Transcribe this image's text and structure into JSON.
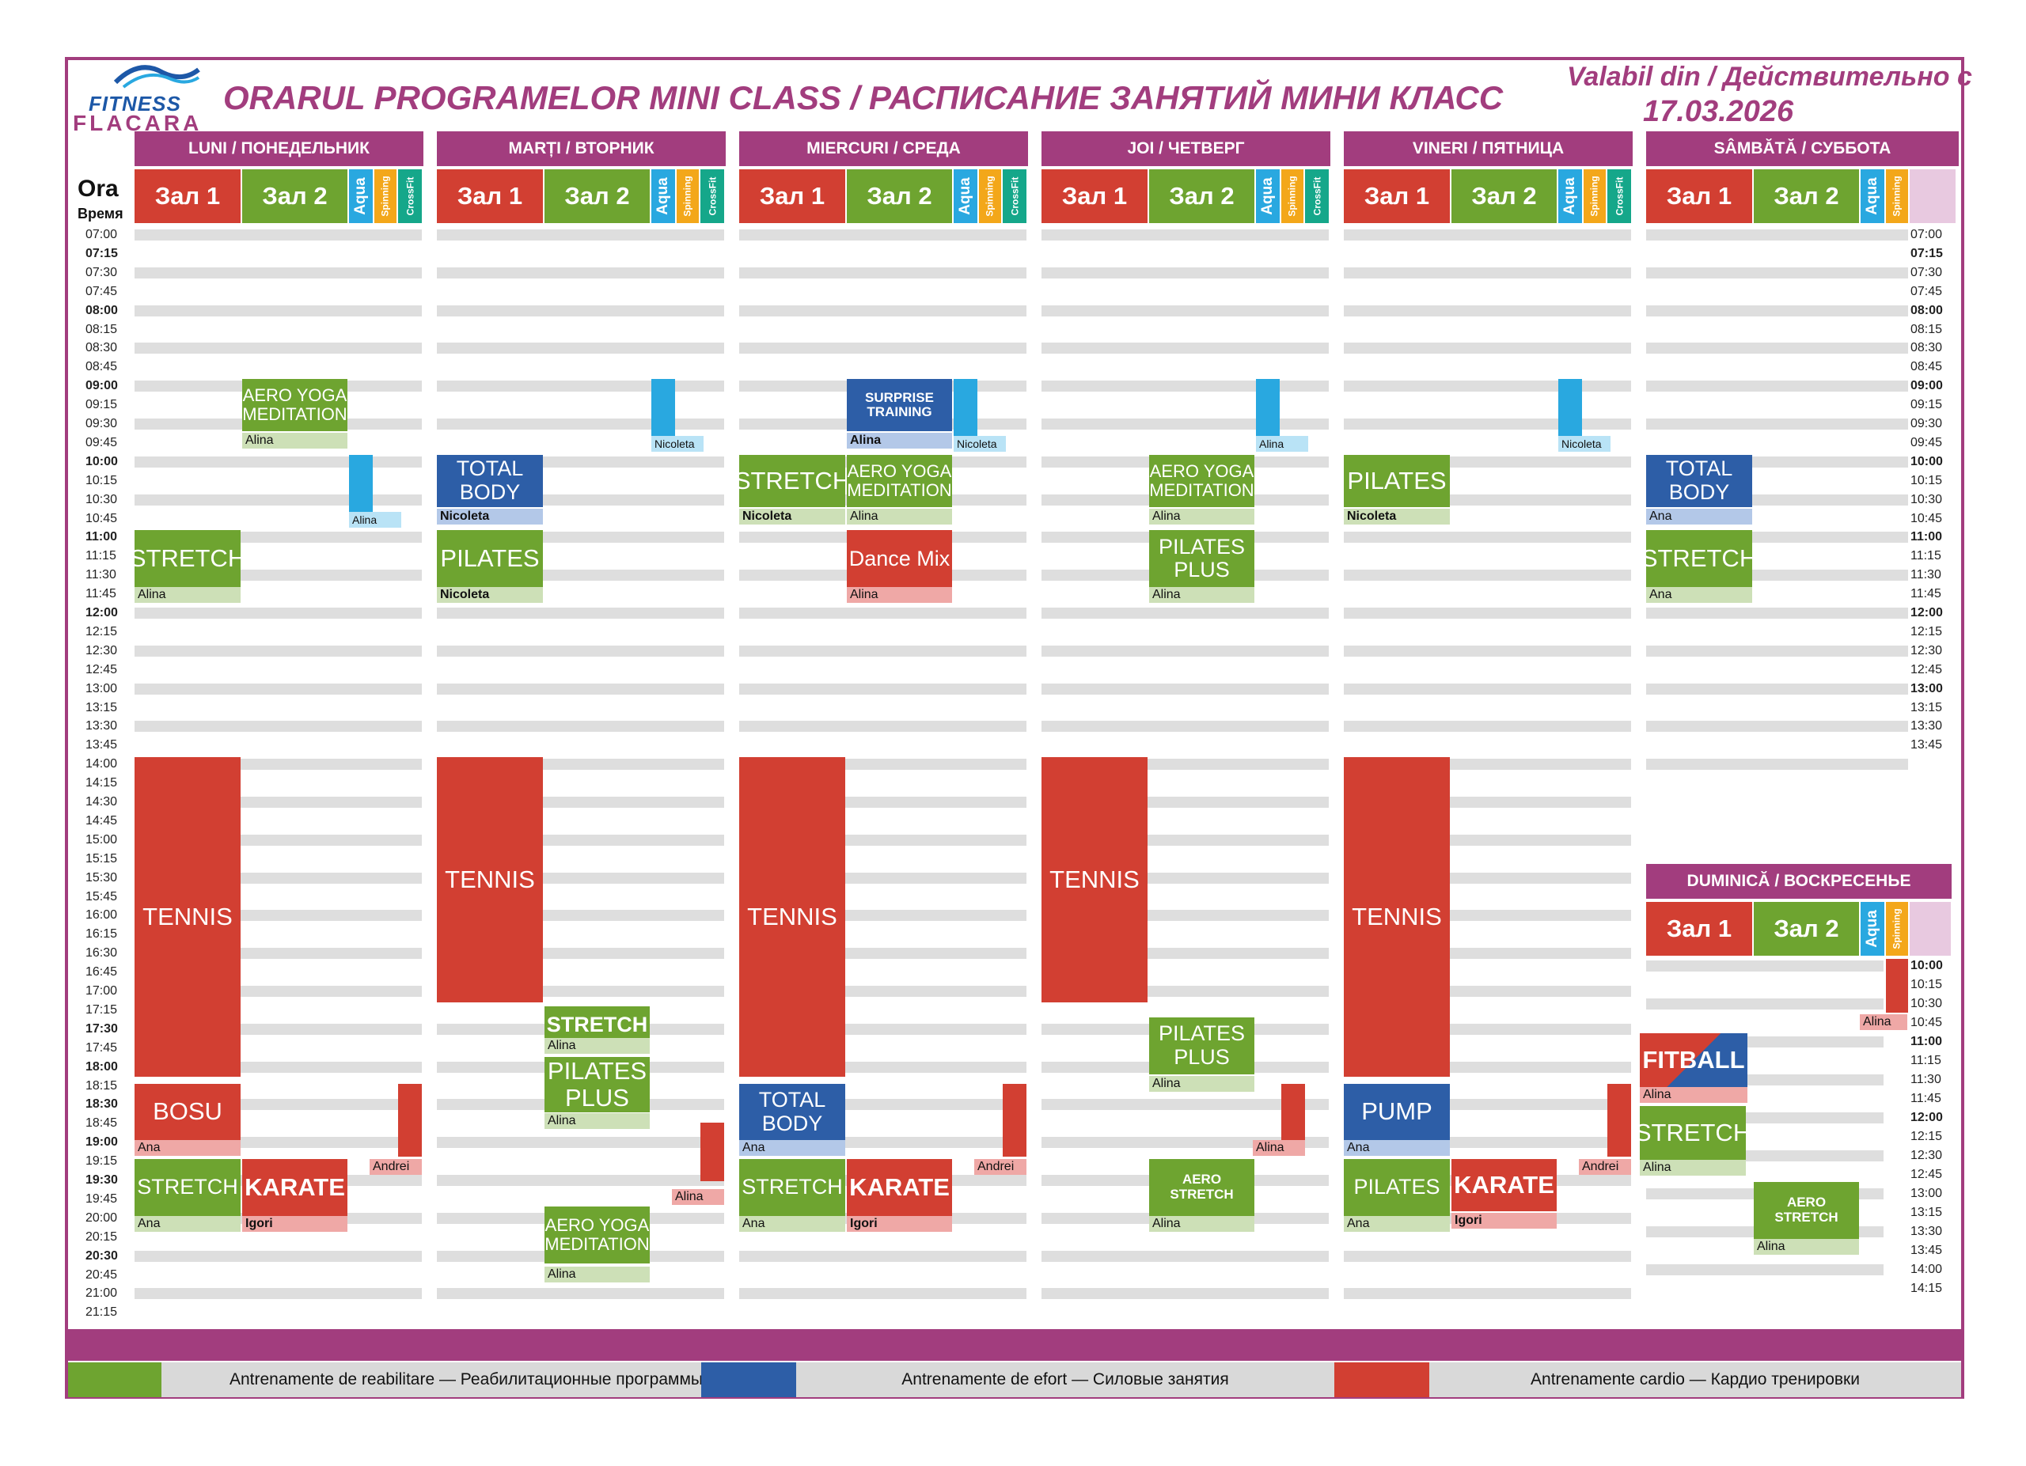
{
  "logo": {
    "fitness": "FITNESS",
    "flacara": "FLACARA"
  },
  "header": {
    "title": "ORARUL PROGRAMELOR MINI CLASS  /  РАСПИСАНИЕ ЗАНЯТИЙ МИНИ КЛАСС",
    "valid_label": "Valabil din / Действительно с",
    "valid_date": "17.03.2026"
  },
  "ora": {
    "label": "Ora",
    "sub": "Время"
  },
  "days": {
    "mon": "LUNI / ПОНЕДЕЛЬНИК",
    "tue": "MARȚI / ВТОРНИК",
    "wed": "MIERCURI / СРЕДА",
    "thu": "JOI / ЧЕТВЕРГ",
    "fri": "VINERI / ПЯТНИЦА",
    "sat": "SÂMBĂTĂ / СУББОТА",
    "sun": "DUMINICĂ / ВОСКРЕСЕНЬЕ"
  },
  "halls": {
    "zal1": "Зал 1",
    "zal2": "Зал 2",
    "aqua": "Aqua",
    "spinning": "Spinning",
    "crossfit": "CrossFit"
  },
  "times_left": [
    "07:00",
    "07:15",
    "07:30",
    "07:45",
    "08:00",
    "08:15",
    "08:30",
    "08:45",
    "09:00",
    "09:15",
    "09:30",
    "09:45",
    "10:00",
    "10:15",
    "10:30",
    "10:45",
    "11:00",
    "11:15",
    "11:30",
    "11:45",
    "12:00",
    "12:15",
    "12:30",
    "12:45",
    "13:00",
    "13:15",
    "13:30",
    "13:45",
    "14:00",
    "14:15",
    "14:30",
    "14:45",
    "15:00",
    "15:15",
    "15:30",
    "15:45",
    "16:00",
    "16:15",
    "16:30",
    "16:45",
    "17:00",
    "17:15",
    "17:30",
    "17:45",
    "18:00",
    "18:15",
    "18:30",
    "18:45",
    "19:00",
    "19:15",
    "19:30",
    "19:45",
    "20:00",
    "20:15",
    "20:30",
    "20:45",
    "21:00",
    "21:15"
  ],
  "times_right_sat": [
    "07:00",
    "07:15",
    "07:30",
    "07:45",
    "08:00",
    "08:15",
    "08:30",
    "08:45",
    "09:00",
    "09:15",
    "09:30",
    "09:45",
    "10:00",
    "10:15",
    "10:30",
    "10:45",
    "11:00",
    "11:15",
    "11:30",
    "11:45",
    "12:00",
    "12:15",
    "12:30",
    "12:45",
    "13:00",
    "13:15",
    "13:30",
    "13:45"
  ],
  "times_right_sun": [
    "10:00",
    "10:15",
    "10:30",
    "10:45",
    "11:00",
    "11:15",
    "11:30",
    "11:45",
    "12:00",
    "12:15",
    "12:30",
    "12:45",
    "13:00",
    "13:15",
    "13:30",
    "13:45",
    "14:00",
    "14:15"
  ],
  "classes": {
    "mon": {
      "aero_yoga": "AERO YOGA\nMEDITATION",
      "aero_yoga_inst": "Alina",
      "aqua_inst": "Alina",
      "stretch": "STRETCH",
      "stretch_inst": "Alina",
      "tennis": "TENNIS",
      "bosu": "BOSU",
      "bosu_inst": "Ana",
      "cross_inst": "Andrei",
      "stretch2": "STRETCH",
      "stretch2_inst": "Ana",
      "karate": "KARATE",
      "karate_inst": "Igori"
    },
    "tue": {
      "aqua_inst": "Nicoleta",
      "total_body": "TOTAL\nBODY",
      "total_body_inst": "Nicoleta",
      "pilates": "PILATES",
      "pilates_inst": "Nicoleta",
      "tennis": "TENNIS",
      "stretch": "STRETCH",
      "stretch_inst": "Alina",
      "pilates_plus": "PILATES\nPLUS",
      "pilates_plus_inst": "Alina",
      "spin_inst": "Alina",
      "aero_yoga": "AERO YOGA\nMEDITATION",
      "aero_yoga_inst": "Alina"
    },
    "wed": {
      "surprise": "SURPRISE\nTRAINING",
      "surprise_inst": "Alina",
      "aqua_inst": "Nicoleta",
      "stretch": "STRETCH",
      "stretch_inst": "Nicoleta",
      "aero_yoga": "AERO YOGA\nMEDITATION",
      "aero_yoga_inst": "Alina",
      "dance_mix": "Dance Mix",
      "dance_mix_inst": "Alina",
      "tennis": "TENNIS",
      "total_body": "TOTAL\nBODY",
      "total_body_inst": "Ana",
      "cross_inst": "Andrei",
      "stretch2": "STRETCH",
      "stretch2_inst": "Ana",
      "karate": "KARATE",
      "karate_inst": "Igori"
    },
    "thu": {
      "aqua_inst": "Alina",
      "aero_yoga": "AERO YOGA\nMEDITATION",
      "aero_yoga_inst": "Alina",
      "pilates_plus": "PILATES\nPLUS",
      "pilates_plus_inst": "Alina",
      "tennis": "TENNIS",
      "pilates_plus2": "PILATES\nPLUS",
      "pilates_plus2_inst": "Alina",
      "spin_inst": "Alina",
      "aero_stretch": "AERO\nSTRETCH",
      "aero_stretch_inst": "Alina"
    },
    "fri": {
      "aqua_inst": "Nicoleta",
      "pilates": "PILATES",
      "pilates_inst": "Nicoleta",
      "tennis": "TENNIS",
      "pump": "PUMP",
      "pump_inst": "Ana",
      "cross_inst": "Andrei",
      "pilates2": "PILATES",
      "pilates2_inst": "Ana",
      "karate": "KARATE",
      "karate_inst": "Igori"
    },
    "sat": {
      "total_body": "TOTAL\nBODY",
      "total_body_inst": "Ana",
      "stretch": "STRETCH",
      "stretch_inst": "Ana"
    },
    "sun": {
      "spin_inst": "Alina",
      "fitball": "FITBALL",
      "fitball_inst": "Alina",
      "stretch": "STRETCH",
      "stretch_inst": "Alina",
      "aero_stretch": "AERO\nSTRETCH",
      "aero_stretch_inst": "Alina"
    }
  },
  "legend": {
    "green": "Antrenamente de reabilitare — Реабилитационные программы",
    "blue": "Antrenamente de efort — Силовые занятия",
    "red": "Antrenamente cardio — Кардио тренировки"
  },
  "colors": {
    "purple": "#a23d7e",
    "green": "#6ea430",
    "blue": "#2d5ea7",
    "red": "#d23f32"
  }
}
